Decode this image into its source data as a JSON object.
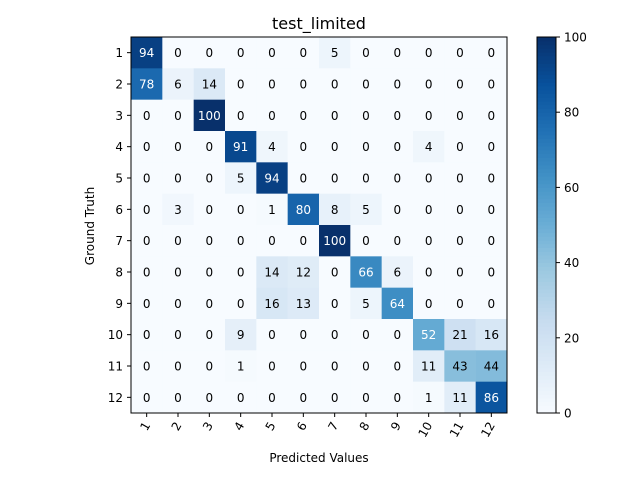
{
  "chart_data": {
    "type": "heatmap",
    "title": "test_limited",
    "xlabel": "Predicted Values",
    "ylabel": "Ground Truth",
    "x_categories": [
      "1",
      "2",
      "3",
      "4",
      "5",
      "6",
      "7",
      "8",
      "9",
      "10",
      "11",
      "12"
    ],
    "y_categories": [
      "1",
      "2",
      "3",
      "4",
      "5",
      "6",
      "7",
      "8",
      "9",
      "10",
      "11",
      "12"
    ],
    "values": [
      [
        94,
        0,
        0,
        0,
        0,
        0,
        5,
        0,
        0,
        0,
        0,
        0
      ],
      [
        78,
        6,
        14,
        0,
        0,
        0,
        0,
        0,
        0,
        0,
        0,
        0
      ],
      [
        0,
        0,
        100,
        0,
        0,
        0,
        0,
        0,
        0,
        0,
        0,
        0
      ],
      [
        0,
        0,
        0,
        91,
        4,
        0,
        0,
        0,
        0,
        4,
        0,
        0
      ],
      [
        0,
        0,
        0,
        5,
        94,
        0,
        0,
        0,
        0,
        0,
        0,
        0
      ],
      [
        0,
        3,
        0,
        0,
        1,
        80,
        8,
        5,
        0,
        0,
        0,
        0
      ],
      [
        0,
        0,
        0,
        0,
        0,
        0,
        100,
        0,
        0,
        0,
        0,
        0
      ],
      [
        0,
        0,
        0,
        0,
        14,
        12,
        0,
        66,
        6,
        0,
        0,
        0
      ],
      [
        0,
        0,
        0,
        0,
        16,
        13,
        0,
        5,
        64,
        0,
        0,
        0
      ],
      [
        0,
        0,
        0,
        9,
        0,
        0,
        0,
        0,
        0,
        52,
        21,
        16
      ],
      [
        0,
        0,
        0,
        1,
        0,
        0,
        0,
        0,
        0,
        11,
        43,
        44
      ],
      [
        0,
        0,
        0,
        0,
        0,
        0,
        0,
        0,
        0,
        1,
        11,
        86
      ]
    ],
    "colormap": "Blues",
    "color_range": [
      0,
      100
    ],
    "colorbar_ticks": [
      0,
      20,
      40,
      60,
      80,
      100
    ],
    "grid": false,
    "legend": "colorbar-right"
  }
}
